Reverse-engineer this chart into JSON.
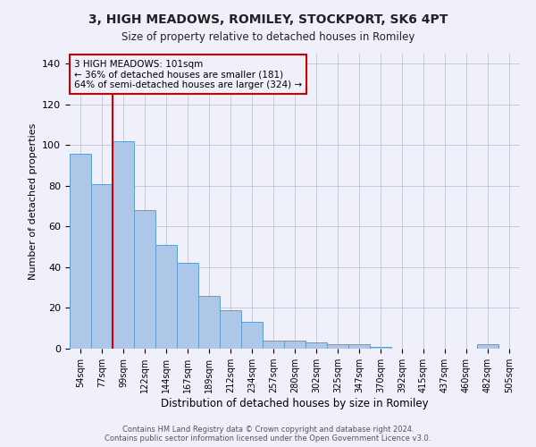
{
  "title": "3, HIGH MEADOWS, ROMILEY, STOCKPORT, SK6 4PT",
  "subtitle": "Size of property relative to detached houses in Romiley",
  "xlabel": "Distribution of detached houses by size in Romiley",
  "ylabel": "Number of detached properties",
  "categories": [
    "54sqm",
    "77sqm",
    "99sqm",
    "122sqm",
    "144sqm",
    "167sqm",
    "189sqm",
    "212sqm",
    "234sqm",
    "257sqm",
    "280sqm",
    "302sqm",
    "325sqm",
    "347sqm",
    "370sqm",
    "392sqm",
    "415sqm",
    "437sqm",
    "460sqm",
    "482sqm",
    "505sqm"
  ],
  "values": [
    96,
    81,
    102,
    68,
    51,
    42,
    26,
    19,
    13,
    4,
    4,
    3,
    2,
    2,
    1,
    0,
    0,
    0,
    0,
    2,
    0
  ],
  "bar_color": "#aec6e8",
  "bar_edge_color": "#5a9fd4",
  "vline_index": 2,
  "vline_color": "#cc0000",
  "ylim": [
    0,
    145
  ],
  "yticks": [
    0,
    20,
    40,
    60,
    80,
    100,
    120,
    140
  ],
  "annotation_text": "3 HIGH MEADOWS: 101sqm\n← 36% of detached houses are smaller (181)\n64% of semi-detached houses are larger (324) →",
  "annotation_box_color": "#cc0000",
  "footer_text": "Contains HM Land Registry data © Crown copyright and database right 2024.\nContains public sector information licensed under the Open Government Licence v3.0.",
  "bg_color": "#f0f0fa",
  "grid_color": "#c8c8dc"
}
